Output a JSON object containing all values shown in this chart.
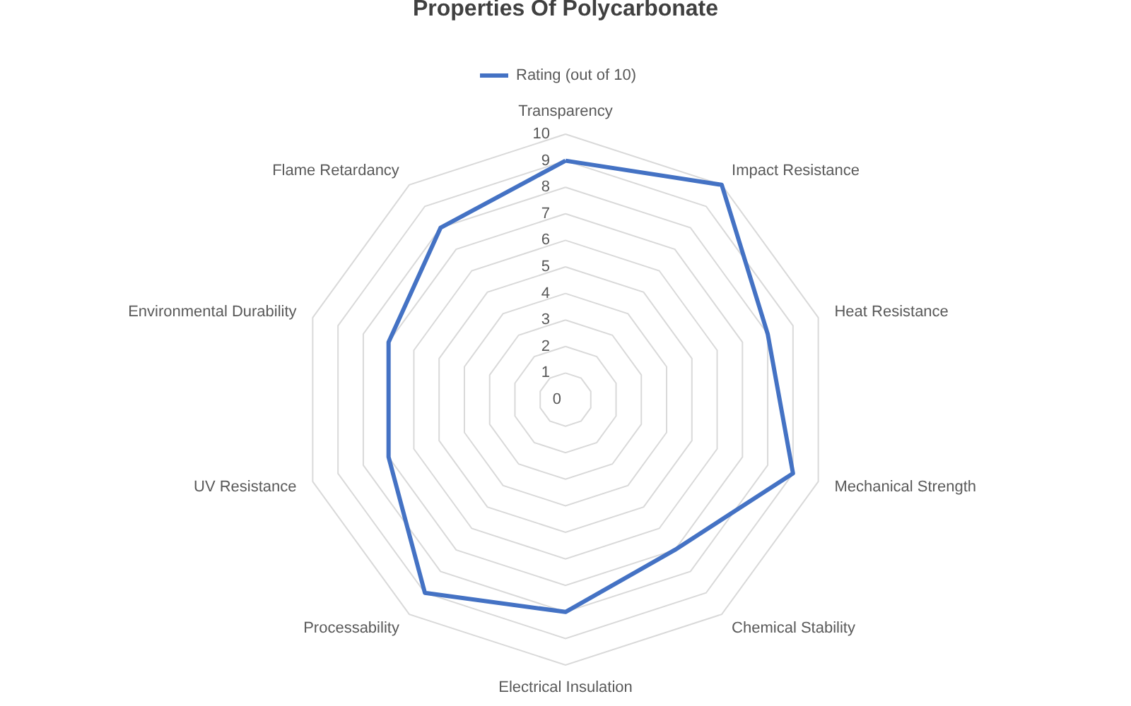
{
  "chart_data": {
    "type": "radar",
    "title": "Properties Of Polycarbonate",
    "categories": [
      "Transparency",
      "Impact Resistance",
      "Heat Resistance",
      "Mechanical Strength",
      "Chemical Stability",
      "Electrical Insulation",
      "Processability",
      "UV Resistance",
      "Environmental Durability",
      "Flame Retardancy"
    ],
    "series": [
      {
        "name": "Rating (out of 10)",
        "color": "#4472c4",
        "values": [
          9,
          10,
          8,
          9,
          7,
          8,
          9,
          7,
          7,
          8
        ]
      }
    ],
    "ylim": [
      0,
      10
    ],
    "yticks": [
      0,
      1,
      2,
      3,
      4,
      5,
      6,
      7,
      8,
      9,
      10
    ],
    "grid": true,
    "legend": "top",
    "marker": "none"
  }
}
